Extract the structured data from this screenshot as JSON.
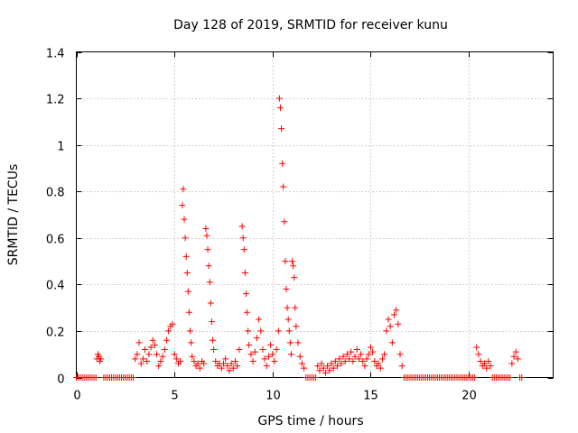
{
  "chart_data": {
    "type": "scatter",
    "title": "Day 128 of 2019, SRMTID for receiver kunu",
    "xlabel": "GPS time / hours",
    "ylabel": "SRMTID / TECUs",
    "xlim": [
      0,
      24.3
    ],
    "ylim": [
      0,
      1.4
    ],
    "x_ticks": [
      0,
      5,
      10,
      15,
      20
    ],
    "x_tick_labels": [
      "0",
      "5",
      "10",
      "15",
      "20"
    ],
    "y_ticks": [
      0,
      0.2,
      0.4,
      0.6,
      0.8,
      1.0,
      1.2,
      1.4
    ],
    "y_tick_labels": [
      "0",
      "0.2",
      "0.4",
      "0.6",
      "0.8",
      "1",
      "1.2",
      "1.4"
    ],
    "grid": true,
    "marker": "+",
    "series": [
      {
        "name": "SRMTID",
        "color": "#ff0000",
        "points": [
          [
            0.0,
            0.0
          ],
          [
            0.1,
            0.0
          ],
          [
            0.2,
            0.0
          ],
          [
            0.3,
            0.0
          ],
          [
            0.4,
            0.0
          ],
          [
            0.5,
            0.0
          ],
          [
            0.6,
            0.0
          ],
          [
            0.7,
            0.0
          ],
          [
            0.8,
            0.0
          ],
          [
            0.9,
            0.0
          ],
          [
            1.0,
            0.0
          ],
          [
            1.05,
            0.08
          ],
          [
            1.1,
            0.1
          ],
          [
            1.15,
            0.09
          ],
          [
            1.2,
            0.07
          ],
          [
            1.25,
            0.08
          ],
          [
            1.4,
            0.0
          ],
          [
            1.5,
            0.0
          ],
          [
            1.6,
            0.0
          ],
          [
            1.7,
            0.0
          ],
          [
            1.8,
            0.0
          ],
          [
            1.9,
            0.0
          ],
          [
            2.0,
            0.0
          ],
          [
            2.1,
            0.0
          ],
          [
            2.2,
            0.0
          ],
          [
            2.3,
            0.0
          ],
          [
            2.4,
            0.0
          ],
          [
            2.5,
            0.0
          ],
          [
            2.6,
            0.0
          ],
          [
            2.7,
            0.0
          ],
          [
            2.8,
            0.0
          ],
          [
            2.9,
            0.0
          ],
          [
            3.0,
            0.08
          ],
          [
            3.1,
            0.1
          ],
          [
            3.2,
            0.15
          ],
          [
            3.3,
            0.06
          ],
          [
            3.4,
            0.08
          ],
          [
            3.5,
            0.12
          ],
          [
            3.6,
            0.07
          ],
          [
            3.7,
            0.1
          ],
          [
            3.8,
            0.13
          ],
          [
            3.9,
            0.16
          ],
          [
            4.0,
            0.14
          ],
          [
            4.1,
            0.1
          ],
          [
            4.2,
            0.05
          ],
          [
            4.3,
            0.07
          ],
          [
            4.4,
            0.09
          ],
          [
            4.5,
            0.12
          ],
          [
            4.6,
            0.16
          ],
          [
            4.7,
            0.2
          ],
          [
            4.8,
            0.22
          ],
          [
            4.9,
            0.23
          ],
          [
            5.0,
            0.1
          ],
          [
            5.1,
            0.08
          ],
          [
            5.2,
            0.06
          ],
          [
            5.3,
            0.07
          ],
          [
            5.4,
            0.74
          ],
          [
            5.45,
            0.81
          ],
          [
            5.5,
            0.68
          ],
          [
            5.55,
            0.6
          ],
          [
            5.6,
            0.52
          ],
          [
            5.65,
            0.45
          ],
          [
            5.7,
            0.37
          ],
          [
            5.75,
            0.28
          ],
          [
            5.8,
            0.2
          ],
          [
            5.85,
            0.15
          ],
          [
            5.9,
            0.09
          ],
          [
            6.0,
            0.07
          ],
          [
            6.1,
            0.05
          ],
          [
            6.2,
            0.06
          ],
          [
            6.3,
            0.04
          ],
          [
            6.4,
            0.07
          ],
          [
            6.5,
            0.06
          ],
          [
            6.6,
            0.64
          ],
          [
            6.65,
            0.61
          ],
          [
            6.7,
            0.55
          ],
          [
            6.75,
            0.48
          ],
          [
            6.8,
            0.41
          ],
          [
            6.85,
            0.32
          ],
          [
            6.9,
            0.24
          ],
          [
            6.95,
            0.16
          ],
          [
            7.0,
            0.12
          ],
          [
            7.1,
            0.07
          ],
          [
            7.2,
            0.05
          ],
          [
            7.3,
            0.06
          ],
          [
            7.4,
            0.04
          ],
          [
            7.5,
            0.06
          ],
          [
            7.6,
            0.08
          ],
          [
            7.7,
            0.05
          ],
          [
            7.8,
            0.03
          ],
          [
            7.9,
            0.06
          ],
          [
            8.0,
            0.04
          ],
          [
            8.1,
            0.07
          ],
          [
            8.2,
            0.05
          ],
          [
            8.3,
            0.12
          ],
          [
            8.45,
            0.65
          ],
          [
            8.5,
            0.6
          ],
          [
            8.55,
            0.55
          ],
          [
            8.6,
            0.45
          ],
          [
            8.65,
            0.36
          ],
          [
            8.7,
            0.28
          ],
          [
            8.75,
            0.2
          ],
          [
            8.8,
            0.14
          ],
          [
            8.9,
            0.1
          ],
          [
            9.0,
            0.07
          ],
          [
            9.1,
            0.11
          ],
          [
            9.2,
            0.17
          ],
          [
            9.3,
            0.25
          ],
          [
            9.4,
            0.2
          ],
          [
            9.5,
            0.12
          ],
          [
            9.6,
            0.08
          ],
          [
            9.7,
            0.05
          ],
          [
            9.8,
            0.09
          ],
          [
            9.9,
            0.14
          ],
          [
            10.0,
            0.1
          ],
          [
            10.1,
            0.07
          ],
          [
            10.2,
            0.12
          ],
          [
            10.3,
            0.2
          ],
          [
            10.35,
            1.2
          ],
          [
            10.4,
            1.16
          ],
          [
            10.45,
            1.07
          ],
          [
            10.5,
            0.92
          ],
          [
            10.55,
            0.82
          ],
          [
            10.6,
            0.67
          ],
          [
            10.65,
            0.5
          ],
          [
            10.7,
            0.38
          ],
          [
            10.75,
            0.3
          ],
          [
            10.8,
            0.25
          ],
          [
            10.85,
            0.2
          ],
          [
            10.9,
            0.15
          ],
          [
            10.95,
            0.1
          ],
          [
            11.0,
            0.5
          ],
          [
            11.05,
            0.48
          ],
          [
            11.1,
            0.43
          ],
          [
            11.15,
            0.3
          ],
          [
            11.2,
            0.22
          ],
          [
            11.3,
            0.15
          ],
          [
            11.4,
            0.09
          ],
          [
            11.5,
            0.06
          ],
          [
            11.6,
            0.04
          ],
          [
            11.7,
            0.0
          ],
          [
            11.8,
            0.0
          ],
          [
            11.9,
            0.0
          ],
          [
            12.0,
            0.0
          ],
          [
            12.1,
            0.0
          ],
          [
            12.2,
            0.0
          ],
          [
            12.3,
            0.05
          ],
          [
            12.4,
            0.03
          ],
          [
            12.5,
            0.06
          ],
          [
            12.6,
            0.04
          ],
          [
            12.7,
            0.02
          ],
          [
            12.8,
            0.05
          ],
          [
            12.9,
            0.03
          ],
          [
            13.0,
            0.06
          ],
          [
            13.1,
            0.04
          ],
          [
            13.2,
            0.07
          ],
          [
            13.3,
            0.05
          ],
          [
            13.4,
            0.08
          ],
          [
            13.5,
            0.06
          ],
          [
            13.6,
            0.09
          ],
          [
            13.7,
            0.07
          ],
          [
            13.8,
            0.1
          ],
          [
            13.9,
            0.08
          ],
          [
            14.0,
            0.11
          ],
          [
            14.1,
            0.07
          ],
          [
            14.2,
            0.09
          ],
          [
            14.3,
            0.12
          ],
          [
            14.4,
            0.08
          ],
          [
            14.5,
            0.1
          ],
          [
            14.6,
            0.07
          ],
          [
            14.7,
            0.05
          ],
          [
            14.8,
            0.08
          ],
          [
            14.9,
            0.1
          ],
          [
            15.0,
            0.13
          ],
          [
            15.1,
            0.11
          ],
          [
            15.2,
            0.07
          ],
          [
            15.3,
            0.05
          ],
          [
            15.4,
            0.06
          ],
          [
            15.5,
            0.04
          ],
          [
            15.6,
            0.08
          ],
          [
            15.7,
            0.1
          ],
          [
            15.8,
            0.2
          ],
          [
            15.9,
            0.25
          ],
          [
            16.0,
            0.22
          ],
          [
            16.1,
            0.15
          ],
          [
            16.2,
            0.27
          ],
          [
            16.3,
            0.29
          ],
          [
            16.4,
            0.23
          ],
          [
            16.5,
            0.1
          ],
          [
            16.6,
            0.05
          ],
          [
            16.7,
            0.0
          ],
          [
            16.8,
            0.0
          ],
          [
            16.9,
            0.0
          ],
          [
            17.0,
            0.0
          ],
          [
            17.1,
            0.0
          ],
          [
            17.2,
            0.0
          ],
          [
            17.3,
            0.0
          ],
          [
            17.4,
            0.0
          ],
          [
            17.5,
            0.0
          ],
          [
            17.6,
            0.0
          ],
          [
            17.7,
            0.0
          ],
          [
            17.8,
            0.0
          ],
          [
            17.9,
            0.0
          ],
          [
            18.0,
            0.0
          ],
          [
            18.1,
            0.0
          ],
          [
            18.2,
            0.0
          ],
          [
            18.3,
            0.0
          ],
          [
            18.4,
            0.0
          ],
          [
            18.5,
            0.0
          ],
          [
            18.6,
            0.0
          ],
          [
            18.7,
            0.0
          ],
          [
            18.8,
            0.0
          ],
          [
            18.9,
            0.0
          ],
          [
            19.0,
            0.0
          ],
          [
            19.1,
            0.0
          ],
          [
            19.2,
            0.0
          ],
          [
            19.3,
            0.0
          ],
          [
            19.4,
            0.0
          ],
          [
            19.5,
            0.0
          ],
          [
            19.6,
            0.0
          ],
          [
            19.7,
            0.0
          ],
          [
            19.8,
            0.0
          ],
          [
            19.9,
            0.0
          ],
          [
            20.0,
            0.0
          ],
          [
            20.1,
            0.0
          ],
          [
            20.2,
            0.0
          ],
          [
            20.3,
            0.0
          ],
          [
            20.4,
            0.13
          ],
          [
            20.5,
            0.1
          ],
          [
            20.6,
            0.07
          ],
          [
            20.7,
            0.05
          ],
          [
            20.8,
            0.06
          ],
          [
            20.9,
            0.04
          ],
          [
            21.0,
            0.07
          ],
          [
            21.1,
            0.05
          ],
          [
            21.2,
            0.0
          ],
          [
            21.3,
            0.0
          ],
          [
            21.4,
            0.0
          ],
          [
            21.5,
            0.0
          ],
          [
            21.6,
            0.0
          ],
          [
            21.7,
            0.0
          ],
          [
            21.8,
            0.0
          ],
          [
            21.9,
            0.0
          ],
          [
            22.0,
            0.0
          ],
          [
            22.1,
            0.0
          ],
          [
            22.2,
            0.06
          ],
          [
            22.3,
            0.09
          ],
          [
            22.4,
            0.11
          ],
          [
            22.5,
            0.08
          ],
          [
            22.6,
            0.0
          ],
          [
            22.7,
            0.0
          ]
        ]
      }
    ]
  }
}
